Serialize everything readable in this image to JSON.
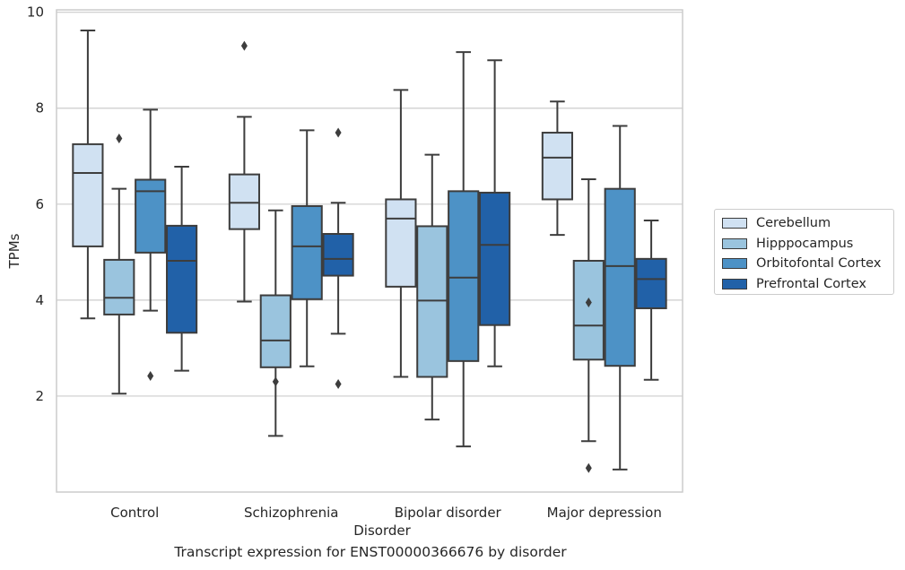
{
  "chart_data": {
    "type": "box",
    "categories": [
      "Control",
      "Schizophrenia",
      "Bipolar disorder",
      "Major depression"
    ],
    "xlabel": "Disorder",
    "ylabel": "TPMs",
    "caption": "Transcript expression for ENST00000366676 by disorder",
    "ylim": [
      0,
      10.05
    ],
    "yticks": [
      2,
      4,
      6,
      8,
      10
    ],
    "grid": true,
    "legend_position": "right-center",
    "series": [
      {
        "name": "Cerebellum",
        "color": "#d0e1f2",
        "boxes": [
          {
            "whislo": 3.62,
            "q1": 5.12,
            "med": 6.65,
            "q3": 7.25,
            "whishi": 9.62,
            "fliers": []
          },
          {
            "whislo": 3.97,
            "q1": 5.48,
            "med": 6.03,
            "q3": 6.62,
            "whishi": 7.82,
            "fliers": [
              9.3
            ]
          },
          {
            "whislo": 2.4,
            "q1": 4.28,
            "med": 5.7,
            "q3": 6.1,
            "whishi": 8.38,
            "fliers": []
          },
          {
            "whislo": 5.36,
            "q1": 6.1,
            "med": 6.97,
            "q3": 7.49,
            "whishi": 8.14,
            "fliers": []
          }
        ]
      },
      {
        "name": "Hipppocampus",
        "color": "#9ac4de",
        "boxes": [
          {
            "whislo": 2.05,
            "q1": 3.7,
            "med": 4.05,
            "q3": 4.84,
            "whishi": 6.32,
            "fliers": [
              7.37
            ]
          },
          {
            "whislo": 1.17,
            "q1": 2.6,
            "med": 3.16,
            "q3": 4.1,
            "whishi": 5.87,
            "fliers": [
              2.3
            ]
          },
          {
            "whislo": 1.51,
            "q1": 2.4,
            "med": 3.99,
            "q3": 5.54,
            "whishi": 7.03,
            "fliers": []
          },
          {
            "whislo": 1.06,
            "q1": 2.76,
            "med": 3.47,
            "q3": 4.82,
            "whishi": 6.52,
            "fliers": [
              3.95,
              0.5
            ]
          }
        ]
      },
      {
        "name": "Orbitofontal Cortex",
        "color": "#4d92c6",
        "boxes": [
          {
            "whislo": 3.78,
            "q1": 4.99,
            "med": 6.27,
            "q3": 6.51,
            "whishi": 7.97,
            "fliers": [
              2.42
            ]
          },
          {
            "whislo": 2.62,
            "q1": 4.02,
            "med": 5.12,
            "q3": 5.96,
            "whishi": 7.54,
            "fliers": []
          },
          {
            "whislo": 0.95,
            "q1": 2.73,
            "med": 4.47,
            "q3": 6.27,
            "whishi": 9.17,
            "fliers": []
          },
          {
            "whislo": 0.47,
            "q1": 2.63,
            "med": 4.71,
            "q3": 6.32,
            "whishi": 7.63,
            "fliers": []
          }
        ]
      },
      {
        "name": "Prefrontal Cortex",
        "color": "#2161a8",
        "boxes": [
          {
            "whislo": 2.53,
            "q1": 3.32,
            "med": 4.82,
            "q3": 5.55,
            "whishi": 6.78,
            "fliers": []
          },
          {
            "whislo": 3.3,
            "q1": 4.51,
            "med": 4.86,
            "q3": 5.38,
            "whishi": 6.03,
            "fliers": [
              7.49,
              2.25
            ]
          },
          {
            "whislo": 2.62,
            "q1": 3.48,
            "med": 5.15,
            "q3": 6.24,
            "whishi": 9.0,
            "fliers": []
          },
          {
            "whislo": 2.34,
            "q1": 3.83,
            "med": 4.44,
            "q3": 4.86,
            "whishi": 5.66,
            "fliers": []
          }
        ]
      }
    ]
  }
}
